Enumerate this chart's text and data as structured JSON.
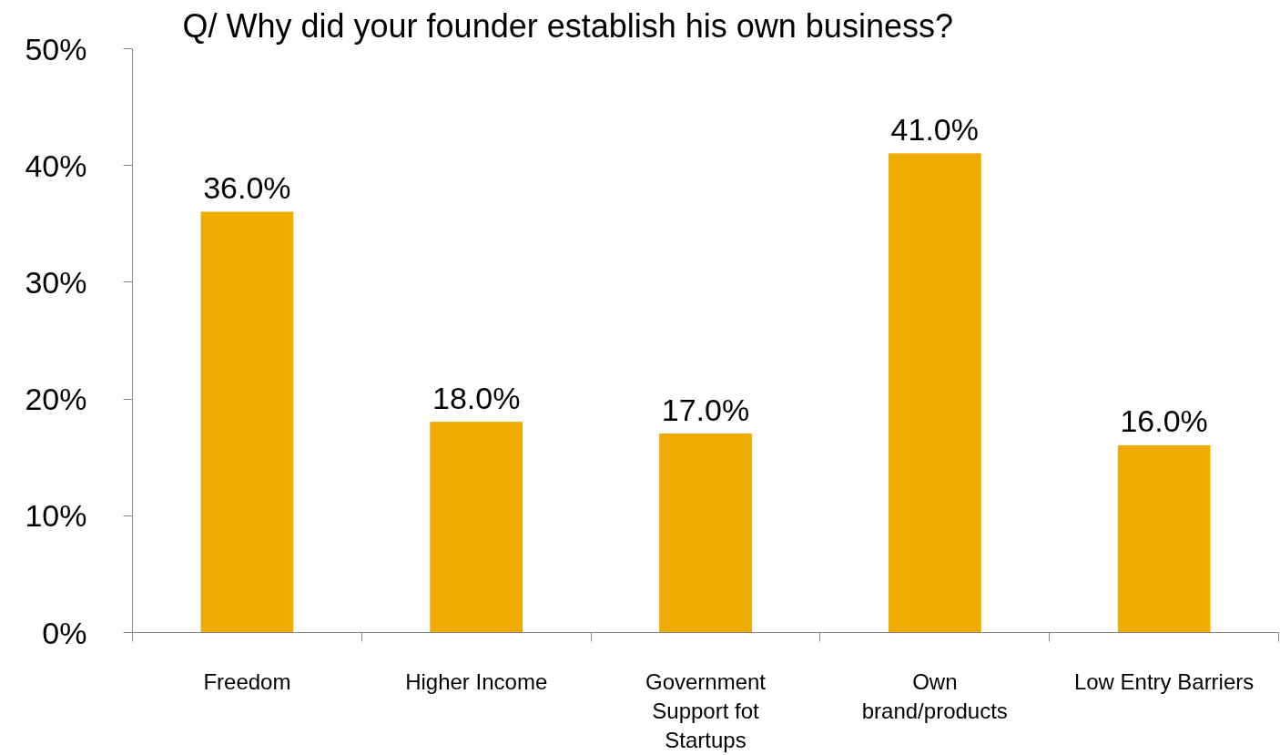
{
  "chart_data": {
    "type": "bar",
    "title": "Q/ Why did your founder establish his own business?",
    "categories": [
      "Freedom",
      "Higher Income",
      "Government\nSupport fot\nStartups",
      "Own\nbrand/products",
      "Low Entry Barriers"
    ],
    "values": [
      36,
      18,
      17,
      41,
      16
    ],
    "value_labels": [
      "36.0%",
      "18.0%",
      "17.0%",
      "41.0%",
      "16.0%"
    ],
    "color": "#f0ab00",
    "ylim": [
      0,
      50
    ],
    "yticks": [
      {
        "value": 0,
        "label": "0%"
      },
      {
        "value": 10,
        "label": "10%"
      },
      {
        "value": 20,
        "label": "20%"
      },
      {
        "value": 30,
        "label": "30%"
      },
      {
        "value": 40,
        "label": "40%"
      },
      {
        "value": 50,
        "label": "50%"
      }
    ],
    "grid": false
  }
}
